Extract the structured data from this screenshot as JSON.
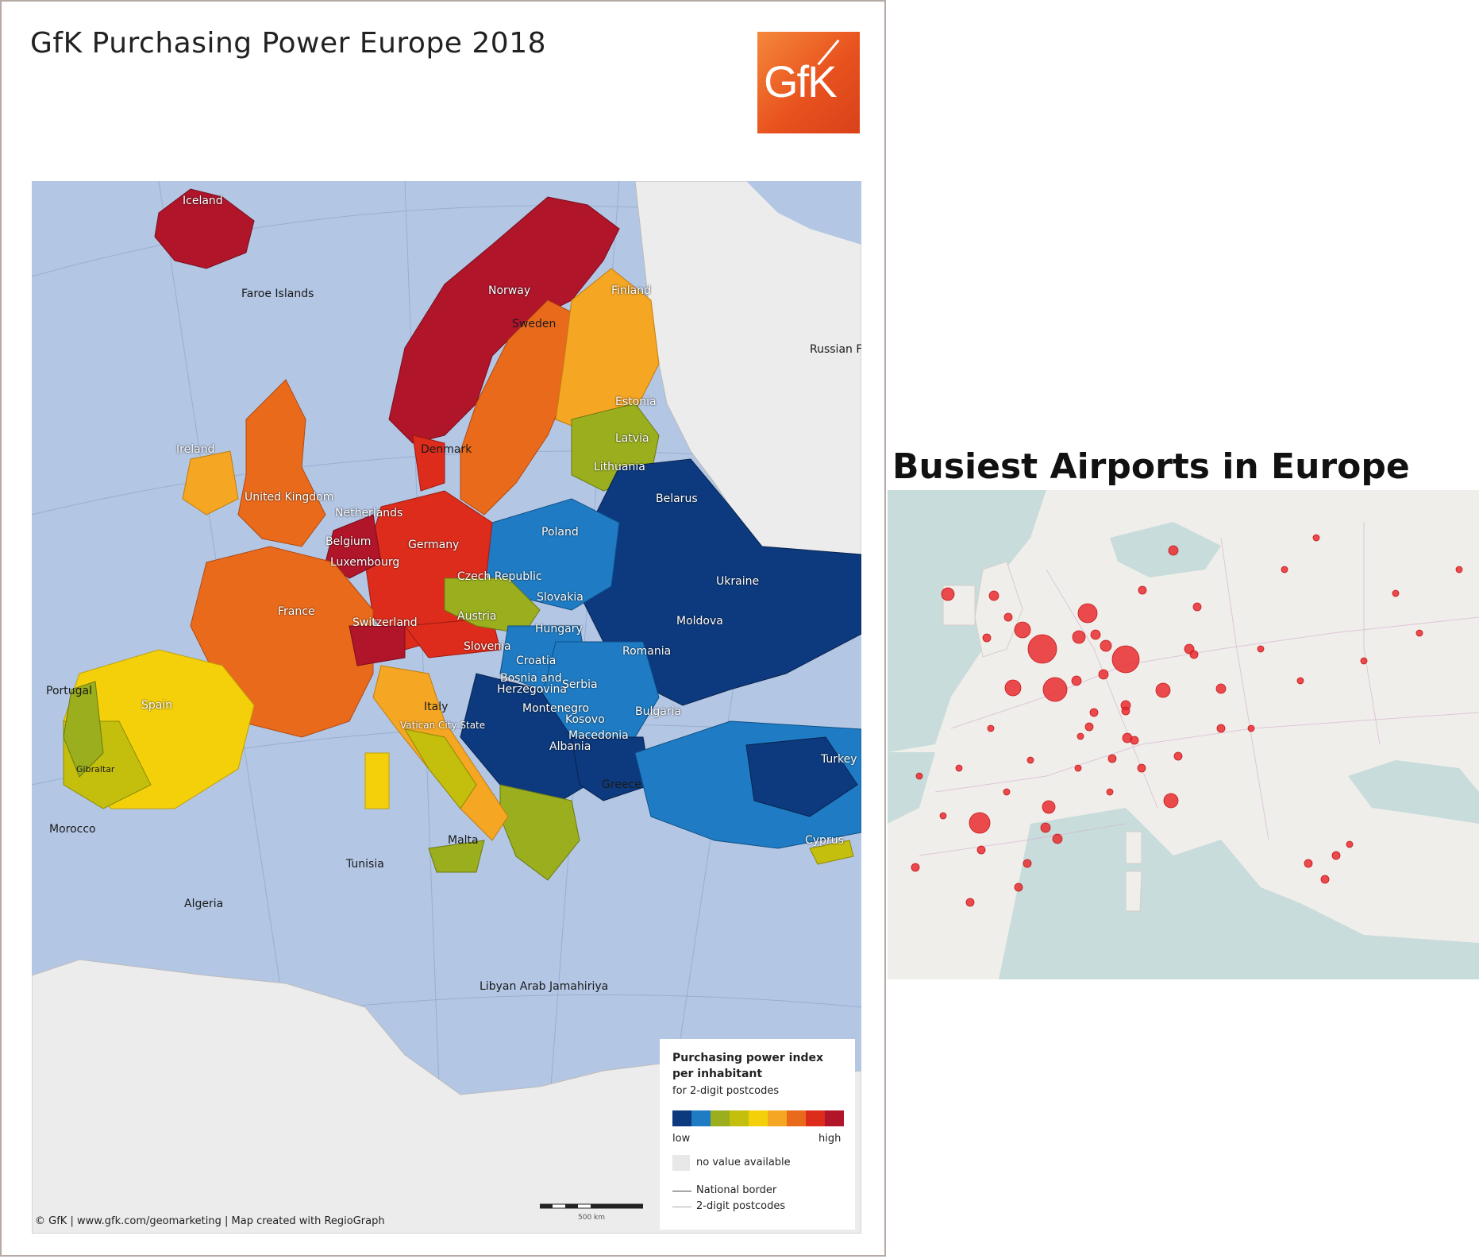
{
  "poster": {
    "title": "GfK Purchasing Power Europe 2018",
    "logo_text": "GfK",
    "credit": "© GfK | www.gfk.com/geomarketing | Map created with RegioGraph",
    "scale_label": "500 km"
  },
  "map_labels": {
    "iceland": "Iceland",
    "faroe": "Faroe Islands",
    "norway": "Norway",
    "finland": "Finland",
    "sweden": "Sweden",
    "russian": "Russian F",
    "estonia": "Estonia",
    "latvia": "Latvia",
    "lithuania": "Lithuania",
    "ireland": "Ireland",
    "denmark": "Denmark",
    "uk": "United Kingdom",
    "netherlands": "Netherlands",
    "belarus": "Belarus",
    "belgium": "Belgium",
    "germany": "Germany",
    "poland": "Poland",
    "luxembourg": "Luxembourg",
    "czech": "Czech Republic",
    "ukraine": "Ukraine",
    "slovakia": "Slovakia",
    "france": "France",
    "switzerland": "Switzerland",
    "austria": "Austria",
    "moldova": "Moldova",
    "hungary": "Hungary",
    "slovenia": "Slovenia",
    "romania": "Romania",
    "croatia": "Croatia",
    "portugal": "Portugal",
    "bosnia1": "Bosnia and",
    "bosnia2": "Herzegovina",
    "serbia": "Serbia",
    "spain": "Spain",
    "montenegro": "Montenegro",
    "bulgaria": "Bulgaria",
    "italy": "Italy",
    "kosovo": "Kosovo",
    "vatican": "Vatican City State",
    "macedonia": "Macedonia",
    "albania": "Albania",
    "turkey": "Turkey",
    "gibraltar": "Gibraltar",
    "greece": "Greece",
    "morocco": "Morocco",
    "malta": "Malta",
    "cyprus": "Cyprus",
    "tunisia": "Tunisia",
    "algeria": "Algeria",
    "libya": "Libyan Arab Jamahiriya"
  },
  "legend": {
    "title_line1": "Purchasing power index",
    "title_line2": "per inhabitant",
    "subtitle": "for 2-digit postcodes",
    "low_label": "low",
    "high_label": "high",
    "no_value_label": "no value available",
    "national_border_label": "National border",
    "postcode_label": "2-digit postcodes",
    "colors": [
      "#0d3a7e",
      "#1f7cc4",
      "#9aae1e",
      "#c4be0c",
      "#f4d00a",
      "#f5a623",
      "#ea6a1c",
      "#dd2c1c",
      "#b0152a"
    ]
  },
  "airports": {
    "title": "Busiest Airports in Europe",
    "marker_color": "#e8262a"
  }
}
